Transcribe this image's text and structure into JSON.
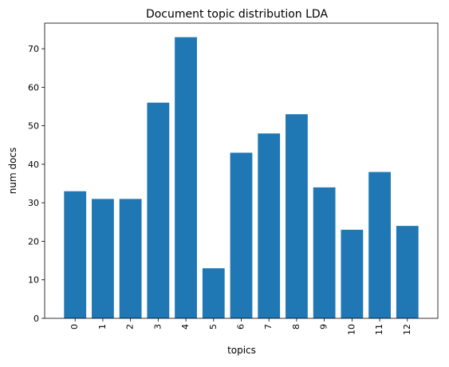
{
  "chart_data": {
    "type": "bar",
    "title": "Document topic distribution LDA",
    "xlabel": "topics",
    "ylabel": "num docs",
    "categories": [
      "0",
      "1",
      "2",
      "3",
      "4",
      "5",
      "6",
      "7",
      "8",
      "9",
      "10",
      "11",
      "12"
    ],
    "values": [
      33,
      31,
      31,
      56,
      73,
      13,
      43,
      48,
      53,
      34,
      23,
      38,
      24
    ],
    "ylim": [
      0,
      76.65
    ],
    "yticks": [
      0,
      10,
      20,
      30,
      40,
      50,
      60,
      70
    ],
    "xtick_rotation": "vertical",
    "grid": false,
    "legend": "none",
    "bar_color": "#1f77b4"
  }
}
